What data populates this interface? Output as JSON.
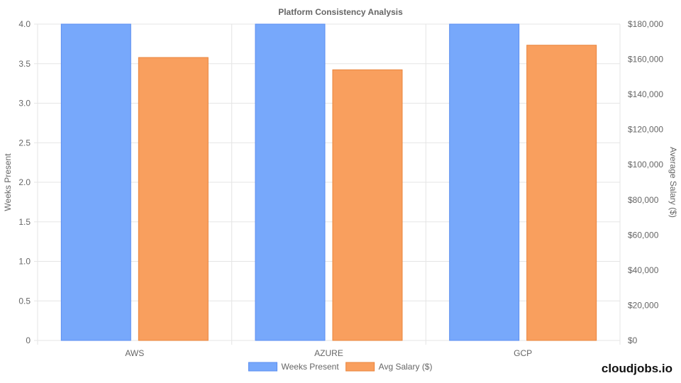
{
  "brand": {
    "text": "cloudjobs.io"
  },
  "chart_data": {
    "type": "bar",
    "title": "Platform Consistency Analysis",
    "categories": [
      "AWS",
      "AZURE",
      "GCP"
    ],
    "series": [
      {
        "name": "Weeks Present",
        "values": [
          4,
          4,
          4
        ],
        "axis": "left",
        "fill": "#77a8fb",
        "stroke": "#5b8ef0"
      },
      {
        "name": "Avg Salary ($)",
        "values": [
          161000,
          154000,
          168000
        ],
        "axis": "right",
        "fill": "#f99f5e",
        "stroke": "#e9843c"
      }
    ],
    "y_left": {
      "label": "Weeks Present",
      "ylim": [
        0,
        4
      ],
      "ticks": [
        "0",
        "0.5",
        "1.0",
        "1.5",
        "2.0",
        "2.5",
        "3.0",
        "3.5",
        "4.0"
      ]
    },
    "y_right": {
      "label": "Average Salary ($)",
      "ylim": [
        0,
        180000
      ],
      "ticks": [
        "$0",
        "$20,000",
        "$40,000",
        "$60,000",
        "$80,000",
        "$100,000",
        "$120,000",
        "$140,000",
        "$160,000",
        "$180,000"
      ]
    },
    "grid": true,
    "legend_position": "bottom-center"
  }
}
